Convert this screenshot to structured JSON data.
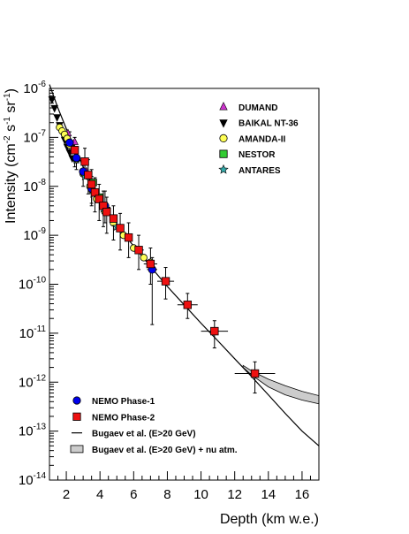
{
  "chart_data": {
    "type": "scatter",
    "xlabel": "Depth (km w.e.)",
    "ylabel": "Intensity (cm⁻² s⁻¹ sr⁻¹)",
    "ylabel_parts": {
      "base": "Intensity (cm",
      "exp1": "-2",
      "mid1": " s",
      "exp2": "-1",
      "mid2": " sr",
      "exp3": "-1",
      "end": ")"
    },
    "xlim": [
      1,
      17
    ],
    "ylim": [
      1e-14,
      1e-06
    ],
    "yscale": "log",
    "x_ticks": [
      2,
      4,
      6,
      8,
      10,
      12,
      14,
      16
    ],
    "x_tick_labels": [
      "2",
      "4",
      "6",
      "8",
      "10",
      "12",
      "14",
      "16"
    ],
    "y_ticks": [
      -14,
      -13,
      -12,
      -11,
      -10,
      -9,
      -8,
      -7,
      -6
    ],
    "y_tick_base": "10",
    "y_tick_exponents": [
      "-14",
      "-13",
      "-12",
      "-11",
      "-10",
      "-9",
      "-8",
      "-7",
      "-6"
    ],
    "grid": false,
    "legends": [
      {
        "placement": "top-right",
        "entries": [
          "DUMAND",
          "BAIKAL NT-36",
          "AMANDA-II",
          "NESTOR",
          "ANTARES"
        ]
      },
      {
        "placement": "bottom-left",
        "entries": [
          "NEMO Phase-1",
          "NEMO Phase-2",
          "Bugaev et al. (E>20 GeV)",
          "Bugaev et al. (E>20 GeV) + nu atm."
        ]
      }
    ],
    "series": [
      {
        "name": "DUMAND",
        "marker": "triangle-up",
        "color": "#cc33cc",
        "points": [
          [
            2.1,
            1.2e-07
          ],
          [
            2.5,
            8e-08
          ],
          [
            3.2,
            2e-08
          ]
        ]
      },
      {
        "name": "BAIKAL NT-36",
        "marker": "triangle-down",
        "color": "#000000",
        "points": [
          [
            1.15,
            6e-07
          ],
          [
            1.3,
            4e-07
          ],
          [
            1.45,
            2.6e-07
          ],
          [
            1.6,
            1.8e-07
          ],
          [
            1.75,
            1.25e-07
          ],
          [
            1.9,
            9e-08
          ],
          [
            2.05,
            6.5e-08
          ],
          [
            2.2,
            5e-08
          ],
          [
            2.35,
            3.8e-08
          ]
        ]
      },
      {
        "name": "AMANDA-II",
        "marker": "circle",
        "color": "#ffff55",
        "points": [
          [
            1.6,
            1.6e-07
          ],
          [
            1.75,
            1.35e-07
          ],
          [
            1.9,
            1.15e-07
          ],
          [
            2.05,
            9.5e-08
          ],
          [
            2.2,
            7e-08
          ],
          [
            2.6,
            3.5e-08
          ],
          [
            3.0,
            1.8e-08
          ],
          [
            3.4,
            1e-08
          ],
          [
            3.8,
            5.5e-09
          ],
          [
            4.3,
            3e-09
          ],
          [
            4.8,
            1.8e-09
          ],
          [
            5.4,
            1e-09
          ],
          [
            6.0,
            5.5e-10
          ],
          [
            6.6,
            3.5e-10
          ],
          [
            7.0,
            2.8e-10
          ]
        ]
      },
      {
        "name": "NESTOR",
        "marker": "square",
        "color": "#33cc33",
        "points": [
          [
            3.6,
            1.2e-08
          ],
          [
            4.0,
            6e-09
          ],
          [
            4.4,
            3.2e-09
          ]
        ]
      },
      {
        "name": "ANTARES",
        "marker": "star",
        "color": "#33aaaa",
        "points": [
          [
            2.6,
            3.5e-08
          ],
          [
            3.1,
            1.6e-08
          ],
          [
            3.6,
            7e-09
          ],
          [
            4.2,
            3.5e-09
          ],
          [
            5.0,
            1.5e-09
          ]
        ]
      },
      {
        "name": "NEMO Phase-1",
        "marker": "circle",
        "color": "#0000ee",
        "points": [
          {
            "x": 2.2,
            "y": 7.8e-08,
            "xerr": 0.1,
            "ylo": 5e-08,
            "yhi": 1.3e-07
          },
          {
            "x": 2.6,
            "y": 3.8e-08,
            "xerr": 0.1,
            "ylo": 2.2e-08,
            "yhi": 6.5e-08
          },
          {
            "x": 3.0,
            "y": 2e-08,
            "xerr": 0.1,
            "ylo": 1e-08,
            "yhi": 3.5e-08
          },
          {
            "x": 3.5,
            "y": 9e-09,
            "xerr": 0.15,
            "ylo": 4e-09,
            "yhi": 1.6e-08
          },
          {
            "x": 4.3,
            "y": 4e-09,
            "xerr": 0.2,
            "ylo": 1.8e-09,
            "yhi": 8e-09
          },
          {
            "x": 7.1,
            "y": 2e-10,
            "xerr": 0.3,
            "ylo": 1.5e-11,
            "yhi": 3.5e-10
          }
        ]
      },
      {
        "name": "NEMO Phase-2",
        "marker": "square",
        "color": "#ee1111",
        "points": [
          {
            "x": 2.5,
            "y": 5.5e-08,
            "xerr": 0.15,
            "ylo": 2.5e-08,
            "yhi": 1e-07
          },
          {
            "x": 3.1,
            "y": 3.2e-08,
            "xerr": 0.15,
            "ylo": 1.5e-08,
            "yhi": 6e-08
          },
          {
            "x": 3.3,
            "y": 1.7e-08,
            "xerr": 0.15,
            "ylo": 7e-09,
            "yhi": 3.5e-08
          },
          {
            "x": 3.5,
            "y": 1.1e-08,
            "xerr": 0.15,
            "ylo": 4.5e-09,
            "yhi": 2.2e-08
          },
          {
            "x": 3.7,
            "y": 7.5e-09,
            "xerr": 0.15,
            "ylo": 3e-09,
            "yhi": 1.5e-08
          },
          {
            "x": 3.95,
            "y": 5.5e-09,
            "xerr": 0.15,
            "ylo": 2e-09,
            "yhi": 1.1e-08
          },
          {
            "x": 4.2,
            "y": 4e-09,
            "xerr": 0.15,
            "ylo": 1.5e-09,
            "yhi": 8e-09
          },
          {
            "x": 4.4,
            "y": 3e-09,
            "xerr": 0.15,
            "ylo": 1.1e-09,
            "yhi": 6e-09
          },
          {
            "x": 4.8,
            "y": 2.2e-09,
            "xerr": 0.2,
            "ylo": 8e-10,
            "yhi": 4e-09
          },
          {
            "x": 5.2,
            "y": 1.4e-09,
            "xerr": 0.2,
            "ylo": 5e-10,
            "yhi": 2.8e-09
          },
          {
            "x": 5.7,
            "y": 9e-10,
            "xerr": 0.2,
            "ylo": 3.5e-10,
            "yhi": 1.8e-09
          },
          {
            "x": 6.3,
            "y": 5e-10,
            "xerr": 0.3,
            "ylo": 2e-10,
            "yhi": 1e-09
          },
          {
            "x": 7.0,
            "y": 2.6e-10,
            "xerr": 0.4,
            "ylo": 1e-10,
            "yhi": 5.5e-10
          },
          {
            "x": 7.9,
            "y": 1.15e-10,
            "xerr": 0.5,
            "ylo": 5e-11,
            "yhi": 2.2e-10
          },
          {
            "x": 9.2,
            "y": 3.8e-11,
            "xerr": 0.6,
            "ylo": 2e-11,
            "yhi": 6.5e-11
          },
          {
            "x": 10.8,
            "y": 1.1e-11,
            "xerr": 0.8,
            "ylo": 5e-12,
            "yhi": 1.8e-11
          },
          {
            "x": 13.2,
            "y": 1.5e-12,
            "xerr": 1.2,
            "ylo": 6e-13,
            "yhi": 2.6e-12
          }
        ]
      },
      {
        "name": "Bugaev et al. (E>20 GeV)",
        "type": "line",
        "color": "#000000",
        "points": [
          [
            1.0,
            1.2e-06
          ],
          [
            1.5,
            4e-07
          ],
          [
            2.0,
            1.5e-07
          ],
          [
            3.0,
            2.5e-08
          ],
          [
            4.0,
            5e-09
          ],
          [
            5.0,
            1.6e-09
          ],
          [
            6.0,
            6e-10
          ],
          [
            7.0,
            2.3e-10
          ],
          [
            8.0,
            9e-11
          ],
          [
            9.0,
            3.8e-11
          ],
          [
            10.0,
            1.6e-11
          ],
          [
            11.0,
            7e-12
          ],
          [
            12.0,
            3e-12
          ],
          [
            13.0,
            1.3e-12
          ],
          [
            14.0,
            5.5e-13
          ],
          [
            15.0,
            2.3e-13
          ],
          [
            16.0,
            1e-13
          ],
          [
            17.0,
            5e-14
          ]
        ]
      },
      {
        "name": "Bugaev et al. (E>20 GeV) + nu atm.",
        "type": "band",
        "color": "#cccccc",
        "lower": [
          [
            12.5,
            2e-12
          ],
          [
            13.0,
            1.4e-12
          ],
          [
            14.0,
            8e-13
          ],
          [
            15.0,
            5.5e-13
          ],
          [
            16.0,
            4.3e-13
          ],
          [
            17.0,
            3.6e-13
          ]
        ],
        "upper": [
          [
            12.5,
            2.2e-12
          ],
          [
            13.0,
            1.7e-12
          ],
          [
            14.0,
            1.15e-12
          ],
          [
            15.0,
            8.5e-13
          ],
          [
            16.0,
            6.5e-13
          ],
          [
            17.0,
            5.3e-13
          ]
        ]
      }
    ]
  }
}
